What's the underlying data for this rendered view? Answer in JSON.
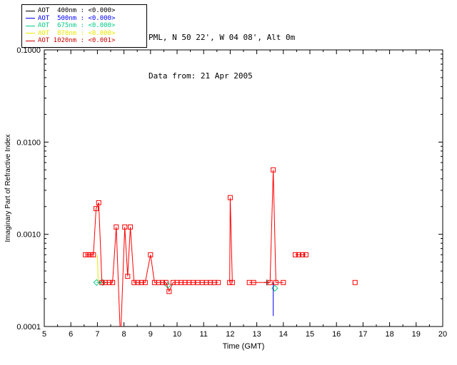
{
  "header": {
    "line1": "PML, N 50 22', W 04 08', Alt 0m",
    "line2": "Data from: 21 Apr 2005"
  },
  "legend": {
    "items": [
      {
        "label": "AOT  400nm : <0.000>",
        "color": "#000000"
      },
      {
        "label": "AOT  500nm : <0.000>",
        "color": "#0000ff"
      },
      {
        "label": "AOT  675nm : <0.000>",
        "color": "#00cc88"
      },
      {
        "label": "AOT  870nm : <0.000>",
        "color": "#e8e800"
      },
      {
        "label": "AOT 1020nm : <0.001>",
        "color": "#cc0000"
      }
    ]
  },
  "chart_data": {
    "type": "line",
    "title": "",
    "xlabel": "Time (GMT)",
    "ylabel": "Imaginary Part of Refractive Index",
    "xlim": [
      5,
      20
    ],
    "ylim": [
      0.0001,
      0.1
    ],
    "yscale": "log",
    "grid": false,
    "xticks": [
      5,
      6,
      7,
      8,
      9,
      10,
      11,
      12,
      13,
      14,
      15,
      16,
      17,
      18,
      19,
      20
    ],
    "yticks": [
      {
        "value": 0.0001,
        "label": "0.0001"
      },
      {
        "value": 0.001,
        "label": "0.0010"
      },
      {
        "value": 0.01,
        "label": "0.0100"
      },
      {
        "value": 0.1,
        "label": "0.1000"
      }
    ],
    "series": [
      {
        "name": "870nm",
        "color": "#e8e800",
        "marker": "none",
        "line": true,
        "points": [
          [
            7.0,
            0.0006
          ],
          [
            7.03,
            0.0003
          ],
          null,
          [
            13.6,
            0.0003
          ],
          [
            13.65,
            0.00024
          ]
        ]
      },
      {
        "name": "675nm",
        "color": "#00cc88",
        "marker": "diamond",
        "line": true,
        "points": [
          [
            6.97,
            0.0003
          ],
          [
            7.2,
            0.0003
          ],
          null,
          [
            9.65,
            0.00028
          ],
          null,
          [
            13.68,
            0.00026
          ]
        ]
      },
      {
        "name": "500nm",
        "color": "#0000ff",
        "marker": "none",
        "line": true,
        "points": [
          [
            13.62,
            0.0003
          ],
          [
            13.62,
            0.00013
          ]
        ]
      },
      {
        "name": "cross",
        "color": "#000000",
        "marker": "plus",
        "line": false,
        "points": [
          [
            13.38,
            0.0003
          ]
        ]
      },
      {
        "name": "1020nm",
        "color": "#ff0000",
        "marker": "square",
        "line": true,
        "points": [
          [
            6.55,
            0.0006
          ],
          [
            6.65,
            0.0006
          ],
          [
            6.75,
            0.0006
          ],
          [
            6.85,
            0.0006
          ],
          [
            6.95,
            0.0019
          ],
          [
            7.05,
            0.0022
          ],
          [
            7.17,
            0.0003
          ],
          [
            7.3,
            0.0003
          ],
          [
            7.45,
            0.0003
          ],
          [
            7.57,
            0.0003
          ],
          [
            7.71,
            0.0012
          ],
          [
            7.87,
            7e-05
          ],
          [
            8.03,
            0.0012
          ],
          [
            8.14,
            0.00035
          ],
          [
            8.24,
            0.0012
          ],
          [
            8.38,
            0.0003
          ],
          [
            8.52,
            0.0003
          ],
          [
            8.66,
            0.0003
          ],
          [
            8.8,
            0.0003
          ],
          [
            9.0,
            0.0006
          ],
          [
            9.15,
            0.0003
          ],
          [
            9.3,
            0.0003
          ],
          [
            9.45,
            0.0003
          ],
          [
            9.58,
            0.0003
          ],
          [
            9.7,
            0.00024
          ],
          [
            9.85,
            0.0003
          ],
          [
            10.0,
            0.0003
          ],
          [
            10.15,
            0.0003
          ],
          [
            10.3,
            0.0003
          ],
          [
            10.45,
            0.0003
          ],
          [
            10.6,
            0.0003
          ],
          [
            10.78,
            0.0003
          ],
          [
            10.95,
            0.0003
          ],
          [
            11.1,
            0.0003
          ],
          [
            11.25,
            0.0003
          ],
          [
            11.4,
            0.0003
          ],
          [
            11.55,
            0.0003
          ],
          null,
          [
            11.98,
            0.0003
          ],
          [
            12.0,
            0.0025
          ],
          [
            12.08,
            0.0003
          ],
          null,
          [
            12.72,
            0.0003
          ],
          [
            12.88,
            0.0003
          ],
          [
            13.5,
            0.0003
          ],
          [
            13.62,
            0.005
          ],
          [
            13.72,
            0.0003
          ],
          [
            14.0,
            0.0003
          ],
          null,
          [
            14.45,
            0.0006
          ],
          [
            14.58,
            0.0006
          ],
          [
            14.72,
            0.0006
          ],
          [
            14.85,
            0.0006
          ],
          null,
          [
            16.7,
            0.0003
          ]
        ]
      }
    ]
  }
}
